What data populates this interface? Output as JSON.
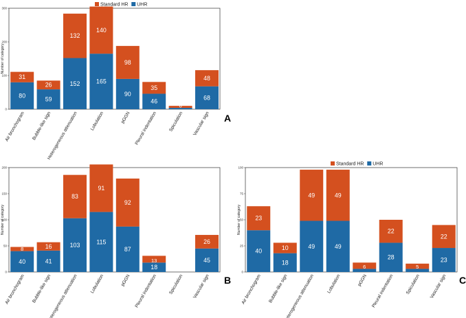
{
  "chart_data": [
    {
      "type": "bar",
      "stacked": true,
      "panel_label": "A",
      "ylabel": "Number of category",
      "ylim": [
        0,
        300
      ],
      "yticks": [
        0,
        100,
        200,
        300
      ],
      "legend": [
        "Standard HR",
        "UHR"
      ],
      "categories": [
        "Air bronchogram",
        "Bubble-like sign",
        "Heterogeneous attenuation",
        "Lobulation",
        "pGGN",
        "Pleural indentation",
        "Spiculation",
        "Vascular sign"
      ],
      "series": [
        {
          "name": "UHR",
          "color": "#1f6aa5",
          "values": [
            80,
            59,
            152,
            165,
            90,
            46,
            4,
            68
          ],
          "labels": [
            "80",
            "59",
            "152",
            "165",
            "90",
            "46",
            "",
            "68"
          ]
        },
        {
          "name": "Standard HR",
          "color": "#d4501f",
          "values": [
            31,
            26,
            132,
            140,
            98,
            35,
            6,
            48
          ],
          "labels": [
            "31",
            "26",
            "132",
            "140",
            "98",
            "35",
            "6",
            "48"
          ]
        }
      ]
    },
    {
      "type": "bar",
      "stacked": true,
      "panel_label": "B",
      "ylabel": "Number of category",
      "ylim": [
        0,
        200
      ],
      "yticks": [
        0,
        50,
        100,
        150,
        200
      ],
      "legend": [],
      "categories": [
        "Air bronchogram",
        "Bubble-like sign",
        "Heterogeneous attenuation",
        "Lobulation",
        "pGGN",
        "Pleural indentation",
        "Spiculation",
        "Vascular sign"
      ],
      "series": [
        {
          "name": "UHR",
          "color": "#1f6aa5",
          "values": [
            40,
            41,
            103,
            115,
            87,
            18,
            0,
            45
          ],
          "labels": [
            "40",
            "41",
            "103",
            "115",
            "87",
            "18",
            "",
            "45"
          ]
        },
        {
          "name": "Standard HR",
          "color": "#d4501f",
          "values": [
            8,
            16,
            83,
            91,
            92,
            13,
            0,
            26
          ],
          "labels": [
            "8",
            "16",
            "83",
            "91",
            "92",
            "13",
            "",
            "26"
          ]
        }
      ]
    },
    {
      "type": "bar",
      "stacked": true,
      "panel_label": "C",
      "ylabel": "Number of category",
      "ylim": [
        0,
        100
      ],
      "yticks": [
        0,
        25,
        50,
        75,
        100
      ],
      "legend": [
        "Standard HR",
        "UHR"
      ],
      "categories": [
        "Air bronchogram",
        "Bubble-like sign",
        "Heterogeneous attenuation",
        "Lobulation",
        "pGGN",
        "Pleural indentation",
        "Spiculation",
        "Vascular sign"
      ],
      "series": [
        {
          "name": "UHR",
          "color": "#1f6aa5",
          "values": [
            40,
            18,
            49,
            49,
            3,
            28,
            3,
            23
          ],
          "labels": [
            "40",
            "18",
            "49",
            "49",
            "",
            "28",
            "",
            "23"
          ]
        },
        {
          "name": "Standard HR",
          "color": "#d4501f",
          "values": [
            23,
            10,
            49,
            49,
            6,
            22,
            5,
            22
          ],
          "labels": [
            "23",
            "10",
            "49",
            "49",
            "6",
            "22",
            "5",
            "22"
          ]
        }
      ]
    }
  ]
}
